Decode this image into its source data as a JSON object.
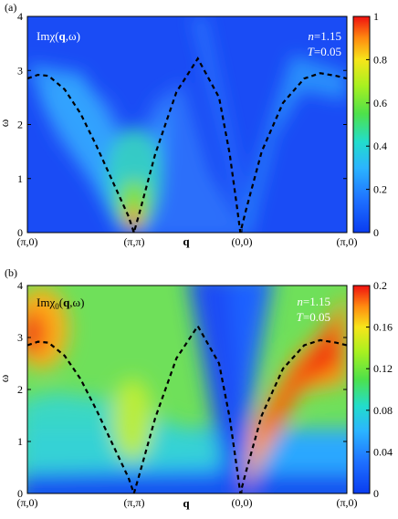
{
  "chart_data": [
    {
      "type": "heatmap",
      "panel_label": "(a)",
      "quantity": {
        "prefix": "Imχ(",
        "bold": "q",
        "suffix": ",ω)"
      },
      "params": {
        "n_label": "n",
        "n_value": "=1.15",
        "T_label": "T",
        "T_value": "=0.05"
      },
      "xlabel": "q",
      "ylabel": "ω",
      "x_ticks": [
        "(π,0)",
        "(π,π)",
        "(0,0)",
        "(π,0)"
      ],
      "ylim": [
        0,
        4
      ],
      "y_ticks": [
        0,
        1,
        2,
        3,
        4
      ],
      "y_tick_labels": [
        "0",
        "1",
        "2",
        "3",
        "4"
      ],
      "colorbar": {
        "range": [
          0,
          1.0
        ],
        "ticks": [
          "0",
          "0.2",
          "0.4",
          "0.6",
          "0.8",
          "1"
        ],
        "values": [
          0,
          0.2,
          0.4,
          0.6,
          0.8,
          1.0
        ]
      },
      "dashed_curve": {
        "style": "dashed black",
        "x": [
          0.0,
          0.1,
          0.2,
          0.35,
          0.5,
          0.65,
          0.8,
          0.95,
          1.0,
          1.05,
          1.2,
          1.4,
          1.6,
          1.8,
          1.9,
          1.97,
          2.0,
          2.05,
          2.2,
          2.4,
          2.6,
          2.75,
          2.9,
          3.0
        ],
        "y": [
          2.85,
          2.92,
          2.9,
          2.65,
          2.2,
          1.6,
          0.95,
          0.3,
          0.0,
          0.35,
          1.45,
          2.6,
          3.22,
          2.5,
          1.45,
          0.45,
          0.0,
          0.4,
          1.5,
          2.4,
          2.85,
          2.95,
          2.9,
          2.85
        ]
      },
      "intensity_features": [
        {
          "x": 1.0,
          "y": 0.15,
          "value": 0.95
        },
        {
          "x": 1.0,
          "y": 0.6,
          "value": 0.5
        },
        {
          "x": 1.0,
          "y": 1.4,
          "value": 0.42
        },
        {
          "x": 0.4,
          "y": 2.6,
          "value": 0.3
        },
        {
          "x": 2.7,
          "y": 2.8,
          "value": 0.25
        },
        {
          "x": 2.0,
          "y": 3.5,
          "value": 0.05
        }
      ]
    },
    {
      "type": "heatmap",
      "panel_label": "(b)",
      "quantity": {
        "prefix": "Imχ",
        "sub": "0",
        "mid": "(",
        "bold": "q",
        "suffix": ",ω)"
      },
      "params": {
        "n_label": "n",
        "n_value": "=1.15",
        "T_label": "T",
        "T_value": "=0.05"
      },
      "xlabel": "q",
      "ylabel": "ω",
      "x_ticks": [
        "(π,0)",
        "(π,π)",
        "(0,0)",
        "(π,0)"
      ],
      "ylim": [
        0,
        4
      ],
      "y_ticks": [
        0,
        1,
        2,
        3,
        4
      ],
      "y_tick_labels": [
        "0",
        "1",
        "2",
        "3",
        "4"
      ],
      "colorbar": {
        "range": [
          0,
          0.2
        ],
        "ticks": [
          "0",
          "0.04",
          "0.08",
          "0.12",
          "0.16",
          "0.2"
        ],
        "values": [
          0,
          0.04,
          0.08,
          0.12,
          0.16,
          0.2
        ]
      },
      "dashed_curve": {
        "style": "dashed black",
        "x": [
          0.0,
          0.1,
          0.2,
          0.35,
          0.5,
          0.65,
          0.8,
          0.95,
          1.0,
          1.05,
          1.2,
          1.4,
          1.6,
          1.8,
          1.9,
          1.97,
          2.0,
          2.05,
          2.2,
          2.4,
          2.6,
          2.75,
          2.9,
          3.0
        ],
        "y": [
          2.85,
          2.92,
          2.9,
          2.65,
          2.2,
          1.6,
          0.95,
          0.3,
          0.0,
          0.35,
          1.45,
          2.6,
          3.22,
          2.5,
          1.45,
          0.45,
          0.0,
          0.4,
          1.5,
          2.4,
          2.85,
          2.95,
          2.9,
          2.85
        ]
      },
      "intensity_features": [
        {
          "x": 0.05,
          "y": 3.2,
          "value": 0.19
        },
        {
          "x": 0.5,
          "y": 2.0,
          "value": 0.09
        },
        {
          "x": 1.0,
          "y": 1.3,
          "value": 0.11
        },
        {
          "x": 2.8,
          "y": 3.2,
          "value": 0.2
        },
        {
          "x": 2.5,
          "y": 2.2,
          "value": 0.18
        },
        {
          "x": 1.5,
          "y": 0.4,
          "value": 0.04
        },
        {
          "x": 2.0,
          "y": 3.5,
          "value": 0.0
        }
      ]
    }
  ]
}
